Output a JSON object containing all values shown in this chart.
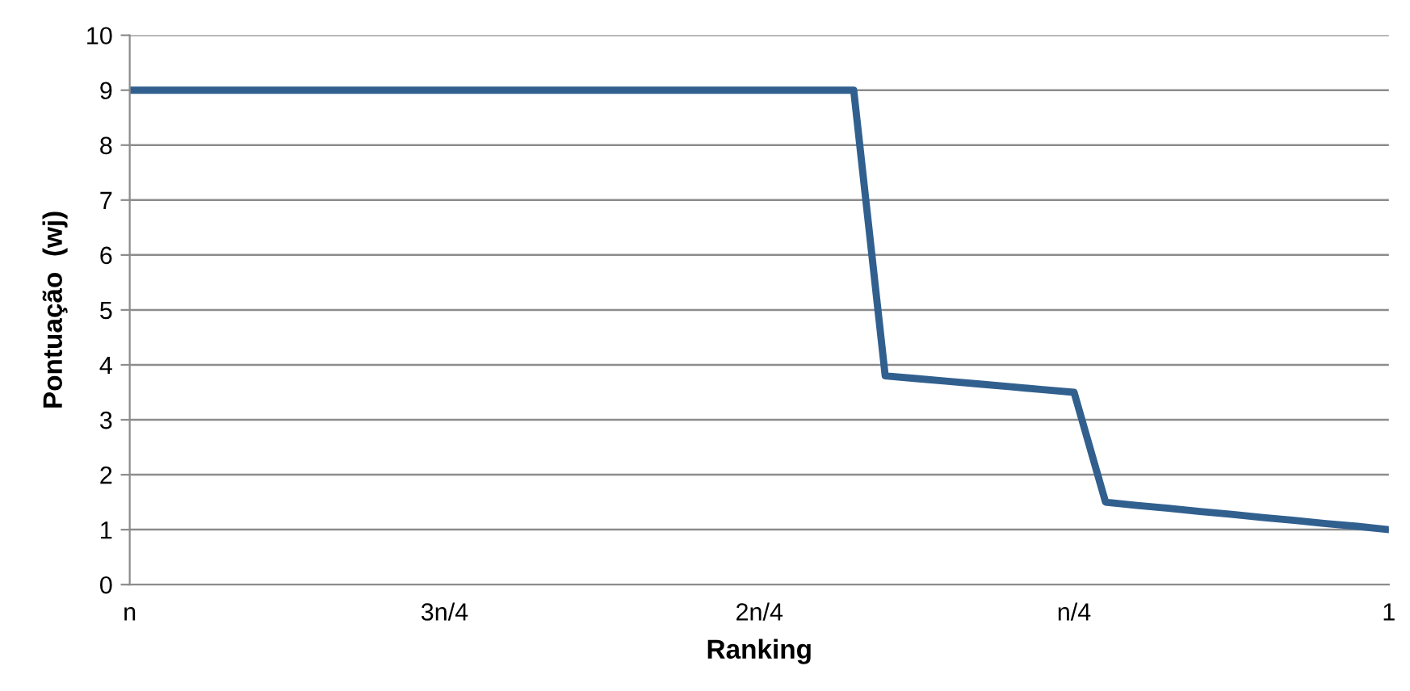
{
  "chart_data": {
    "type": "line",
    "xlabel": "Ranking",
    "ylabel": "Pontuação  (wj)",
    "categories": [
      "n",
      null,
      null,
      null,
      null,
      null,
      null,
      null,
      null,
      null,
      "3n/4",
      null,
      null,
      null,
      null,
      null,
      null,
      null,
      null,
      null,
      "2n/4",
      null,
      null,
      null,
      null,
      null,
      null,
      null,
      null,
      null,
      "n/4",
      null,
      null,
      null,
      null,
      null,
      null,
      null,
      null,
      null,
      "1"
    ],
    "series": [
      {
        "color": "#31608f",
        "values": [
          9,
          9,
          9,
          9,
          9,
          9,
          9,
          9,
          9,
          9,
          9,
          9,
          9,
          9,
          9,
          9,
          9,
          9,
          9,
          9,
          9,
          9,
          9,
          9,
          3.8,
          3.75,
          3.7,
          3.65,
          3.6,
          3.55,
          3.5,
          1.5,
          1.44,
          1.39,
          1.33,
          1.28,
          1.22,
          1.17,
          1.11,
          1.06,
          1.0
        ]
      }
    ],
    "ylim": [
      0,
      10
    ],
    "yticks": [
      0,
      1,
      2,
      3,
      4,
      5,
      6,
      7,
      8,
      9,
      10
    ],
    "grid": "y",
    "legend": false,
    "marker": "none",
    "line_style": "solid"
  }
}
